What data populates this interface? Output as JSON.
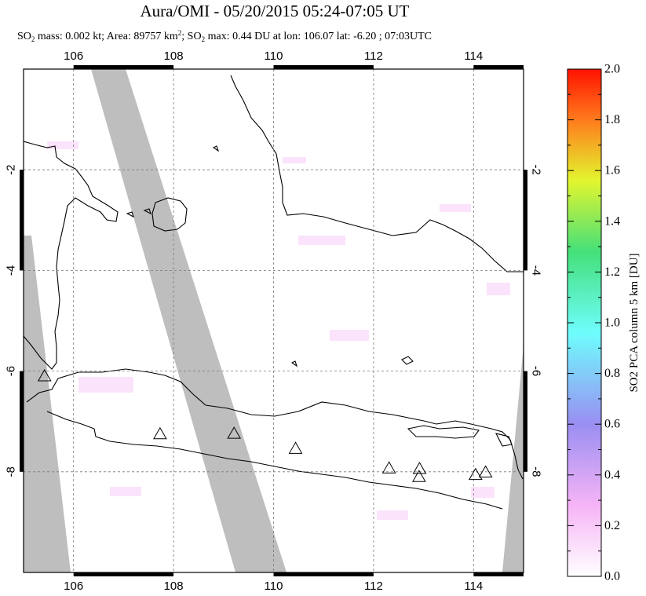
{
  "header": {
    "title": "Aura/OMI - 05/20/2015 05:24-07:05 UT",
    "subtitle_p1": "SO",
    "subtitle_p1_sub": "2",
    "subtitle_p2": " mass: 0.002 kt; Area: 89757 km",
    "subtitle_p2_sup": "2",
    "subtitle_p3": "; SO",
    "subtitle_p3_sub": "2",
    "subtitle_p4": " max: 0.44 DU at lon: 106.07 lat: -6.20 ; 07:03UTC"
  },
  "map": {
    "lon_range": [
      105,
      115
    ],
    "lat_range": [
      -10,
      0
    ],
    "lon_ticks": [
      "106",
      "108",
      "110",
      "112",
      "114"
    ],
    "lat_ticks": [
      "-2",
      "-4",
      "-6",
      "-8"
    ],
    "colors": {
      "swath_gap": "#bebebe",
      "land_outline": "#000000",
      "grid": "#777777"
    },
    "volcano_markers": [
      {
        "lon": 105.42,
        "lat": -6.1
      },
      {
        "lon": 107.73,
        "lat": -7.25
      },
      {
        "lon": 109.21,
        "lat": -7.24
      },
      {
        "lon": 110.44,
        "lat": -7.54
      },
      {
        "lon": 112.31,
        "lat": -7.93
      },
      {
        "lon": 112.92,
        "lat": -7.94
      },
      {
        "lon": 112.91,
        "lat": -8.1
      },
      {
        "lon": 114.04,
        "lat": -8.06
      },
      {
        "lon": 114.24,
        "lat": -8.01
      }
    ]
  },
  "colorbar": {
    "label": "SO2 PCA column 5 km [DU]",
    "ticks": [
      "0.0",
      "0.2",
      "0.4",
      "0.6",
      "0.8",
      "1.0",
      "1.2",
      "1.4",
      "1.6",
      "1.8",
      "2.0"
    ],
    "range": [
      0,
      2
    ],
    "colors": [
      "#ffffff",
      "#f6b4f6",
      "#9a8ef2",
      "#6ffdfd",
      "#44e07a",
      "#e3f52e",
      "#ff7b1d",
      "#ff1200"
    ]
  }
}
